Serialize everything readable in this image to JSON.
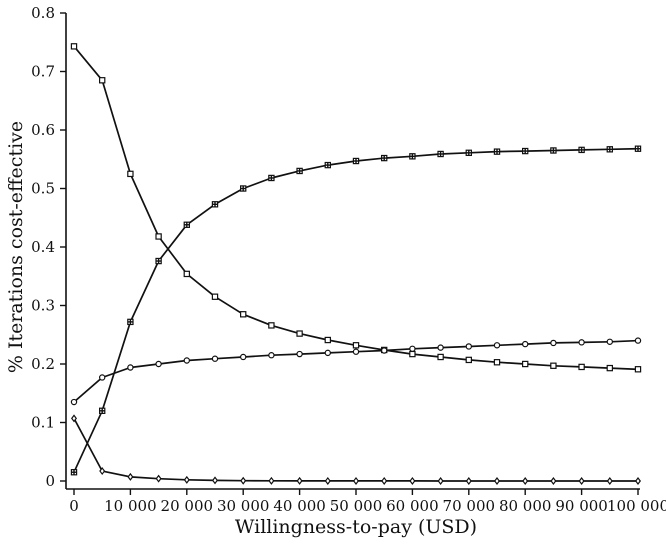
{
  "chart_data": {
    "type": "line",
    "xlabel": "Willingness-to-pay (USD)",
    "ylabel": "% Iterations cost-effective",
    "xlim": [
      0,
      100000
    ],
    "ylim": [
      0,
      0.8
    ],
    "x": [
      0,
      5000,
      10000,
      15000,
      20000,
      25000,
      30000,
      35000,
      40000,
      45000,
      50000,
      55000,
      60000,
      65000,
      70000,
      75000,
      80000,
      85000,
      90000,
      95000,
      100000
    ],
    "x_ticks": [
      0,
      10000,
      20000,
      30000,
      40000,
      50000,
      60000,
      70000,
      80000,
      90000,
      100000
    ],
    "x_tick_labels": [
      "0",
      "10 000",
      "20 000",
      "30 000",
      "40 000",
      "50 000",
      "60 000",
      "70 000",
      "80 000",
      "90 000",
      "100 000"
    ],
    "y_ticks": [
      0,
      0.1,
      0.2,
      0.3,
      0.4,
      0.5,
      0.6,
      0.7,
      0.8
    ],
    "y_tick_labels": [
      "0",
      "0.1",
      "0.2",
      "0.3",
      "0.4",
      "0.5",
      "0.6",
      "0.7",
      "0.8"
    ],
    "grid": false,
    "series": [
      {
        "marker": "square",
        "values": [
          0.743,
          0.685,
          0.525,
          0.418,
          0.354,
          0.315,
          0.285,
          0.266,
          0.252,
          0.241,
          0.232,
          0.224,
          0.217,
          0.212,
          0.207,
          0.203,
          0.2,
          0.197,
          0.195,
          0.193,
          0.191
        ]
      },
      {
        "marker": "cross-square",
        "values": [
          0.015,
          0.12,
          0.272,
          0.376,
          0.438,
          0.473,
          0.5,
          0.518,
          0.53,
          0.54,
          0.547,
          0.552,
          0.555,
          0.559,
          0.561,
          0.563,
          0.564,
          0.565,
          0.566,
          0.567,
          0.568
        ]
      },
      {
        "marker": "circle",
        "values": [
          0.135,
          0.177,
          0.194,
          0.2,
          0.206,
          0.209,
          0.212,
          0.215,
          0.217,
          0.219,
          0.221,
          0.223,
          0.226,
          0.228,
          0.23,
          0.232,
          0.234,
          0.236,
          0.237,
          0.238,
          0.24
        ]
      },
      {
        "marker": "diamond",
        "values": [
          0.107,
          0.017,
          0.007,
          0.004,
          0.002,
          0.001,
          0.0005,
          0.0003,
          0.0002,
          0.0001,
          0.0001,
          0.0001,
          0.0001,
          0.0,
          0.0,
          0.0,
          0.0,
          0.0,
          0.0,
          0.0,
          0.0
        ]
      }
    ]
  }
}
